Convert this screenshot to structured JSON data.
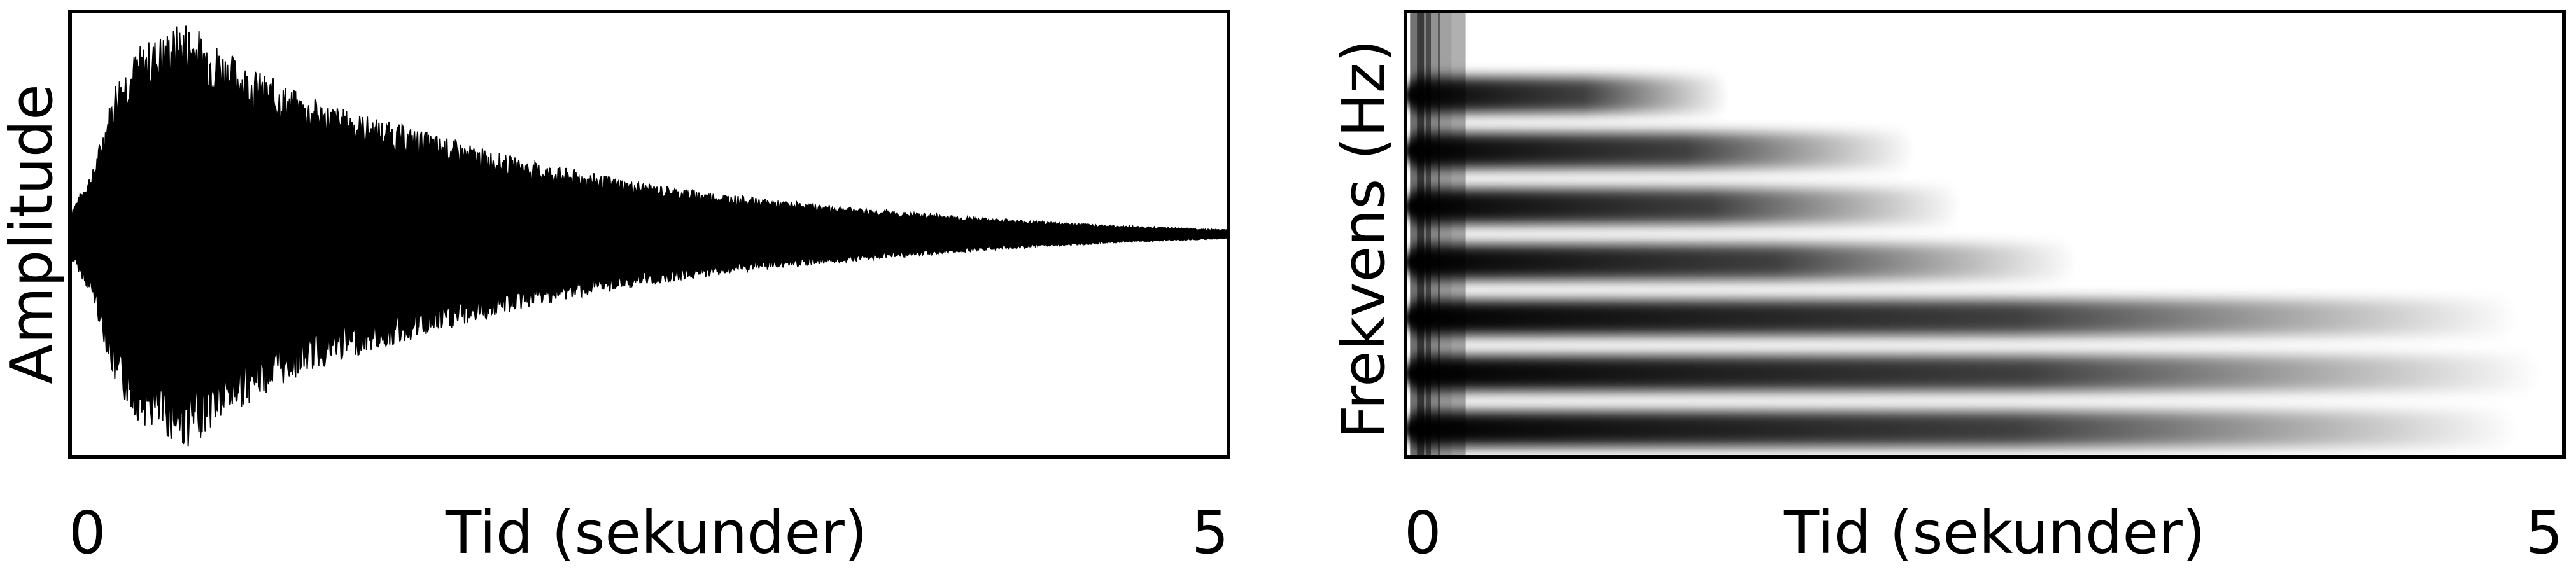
{
  "chart_data": [
    {
      "type": "area",
      "panel": "waveform",
      "xlabel": "Tid (sekunder)",
      "ylabel": "Amplitude",
      "xlim": [
        0,
        5
      ],
      "ylim": [
        -1,
        1
      ],
      "xticks": [
        "0",
        "5"
      ],
      "grid": false,
      "series": [
        {
          "values_note_free": true,
          "x": [
            0,
            0.1,
            0.2,
            0.3,
            0.4,
            0.5,
            0.6,
            0.7,
            0.8,
            0.9,
            1.0,
            1.25,
            1.5,
            1.75,
            2.0,
            2.5,
            3.0,
            3.5,
            4.0,
            4.5,
            5.0
          ],
          "envelope": [
            0.1,
            0.3,
            0.72,
            0.86,
            0.92,
            0.98,
            0.9,
            0.82,
            0.75,
            0.7,
            0.64,
            0.55,
            0.48,
            0.4,
            0.33,
            0.23,
            0.16,
            0.11,
            0.07,
            0.04,
            0.02
          ]
        }
      ]
    },
    {
      "type": "heatmap",
      "panel": "spectrogram",
      "xlabel": "Tid (sekunder)",
      "ylabel": "Frekvens (Hz)",
      "xlim": [
        0,
        5
      ],
      "xticks": [
        "0",
        "5"
      ],
      "grid": false,
      "bands": [
        {
          "row": 1,
          "duration": 1.4
        },
        {
          "row": 2,
          "duration": 2.2
        },
        {
          "row": 3,
          "duration": 2.4
        },
        {
          "row": 4,
          "duration": 2.9
        },
        {
          "row": 5,
          "duration": 4.8
        },
        {
          "row": 6,
          "duration": 4.9
        },
        {
          "row": 7,
          "duration": 4.8
        }
      ]
    }
  ],
  "colors": {
    "ink": "#000000",
    "background": "#ffffff"
  }
}
